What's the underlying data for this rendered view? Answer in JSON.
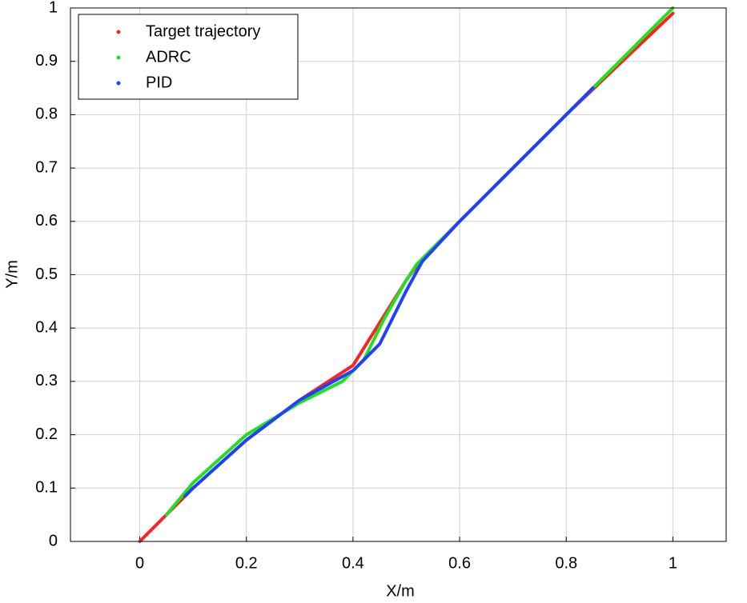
{
  "chart_data": {
    "type": "line",
    "xlabel": "X/m",
    "ylabel": "Y/m",
    "xlim": [
      -0.13,
      1.1
    ],
    "ylim": [
      0,
      1
    ],
    "xticks": [
      0,
      0.2,
      0.4,
      0.6,
      0.8,
      1
    ],
    "yticks": [
      0,
      0.1,
      0.2,
      0.3,
      0.4,
      0.5,
      0.6,
      0.7,
      0.8,
      0.9,
      1
    ],
    "grid": true,
    "legend": "upper left",
    "series": [
      {
        "name": "Target trajectory",
        "color": "#ff2020",
        "x": [
          0,
          0.1,
          0.2,
          0.3,
          0.4,
          0.45,
          0.5,
          0.53,
          0.6,
          0.8,
          1
        ],
        "values": [
          0,
          0.1,
          0.19,
          0.265,
          0.33,
          0.41,
          0.49,
          0.53,
          0.6,
          0.8,
          0.99
        ]
      },
      {
        "name": "ADRC",
        "color": "#20e020",
        "x": [
          0.05,
          0.1,
          0.2,
          0.3,
          0.38,
          0.42,
          0.46,
          0.5,
          0.52,
          0.6,
          0.85,
          1
        ],
        "values": [
          0.05,
          0.11,
          0.2,
          0.26,
          0.3,
          0.34,
          0.42,
          0.49,
          0.52,
          0.6,
          0.85,
          1
        ]
      },
      {
        "name": "PID",
        "color": "#2040ff",
        "x": [
          0.085,
          0.1,
          0.2,
          0.3,
          0.4,
          0.45,
          0.5,
          0.53,
          0.6,
          0.85
        ],
        "values": [
          0.085,
          0.1,
          0.19,
          0.265,
          0.32,
          0.37,
          0.47,
          0.525,
          0.6,
          0.85
        ]
      }
    ]
  }
}
